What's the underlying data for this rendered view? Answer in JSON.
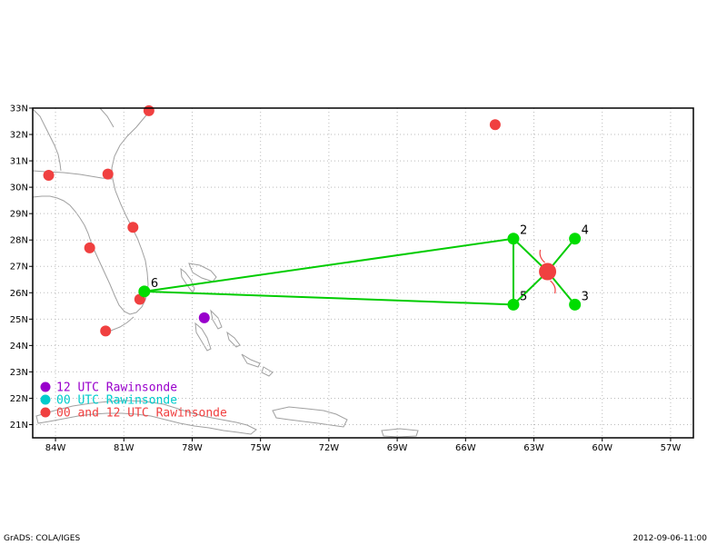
{
  "map": {
    "lon_range": [
      -85,
      -56
    ],
    "lat_range": [
      20.5,
      33
    ],
    "x_ticks": [
      {
        "lon": -84,
        "label": "84W"
      },
      {
        "lon": -81,
        "label": "81W"
      },
      {
        "lon": -78,
        "label": "78W"
      },
      {
        "lon": -75,
        "label": "75W"
      },
      {
        "lon": -72,
        "label": "72W"
      },
      {
        "lon": -69,
        "label": "69W"
      },
      {
        "lon": -66,
        "label": "66W"
      },
      {
        "lon": -63,
        "label": "63W"
      },
      {
        "lon": -60,
        "label": "60W"
      },
      {
        "lon": -57,
        "label": "57W"
      }
    ],
    "y_ticks": [
      {
        "lat": 21,
        "label": "21N"
      },
      {
        "lat": 22,
        "label": "22N"
      },
      {
        "lat": 23,
        "label": "23N"
      },
      {
        "lat": 24,
        "label": "24N"
      },
      {
        "lat": 25,
        "label": "25N"
      },
      {
        "lat": 26,
        "label": "26N"
      },
      {
        "lat": 27,
        "label": "27N"
      },
      {
        "lat": 28,
        "label": "28N"
      },
      {
        "lat": 29,
        "label": "29N"
      },
      {
        "lat": 30,
        "label": "30N"
      },
      {
        "lat": 31,
        "label": "31N"
      },
      {
        "lat": 32,
        "label": "32N"
      },
      {
        "lat": 33,
        "label": "33N"
      }
    ],
    "grid": true
  },
  "colors": {
    "track": "#00cc00",
    "waypoint": "#00dd00",
    "storm": "#f04040",
    "c12": "#9900cc",
    "c00": "#00cccc",
    "cboth": "#f04040",
    "coast": "#a0a0a0"
  },
  "track": [
    {
      "id": "6",
      "lon": -80.1,
      "lat": 26.05
    },
    {
      "id": "2",
      "lon": -63.9,
      "lat": 28.05
    },
    {
      "id": "4",
      "lon": -61.2,
      "lat": 28.05
    },
    {
      "id": "3",
      "lon": -61.2,
      "lat": 25.55
    },
    {
      "id": "5",
      "lon": -63.9,
      "lat": 25.55
    }
  ],
  "track_order": [
    0,
    1,
    4,
    0
  ],
  "storm_center": {
    "lon": -62.4,
    "lat": 26.8
  },
  "storm_spokes": [
    1,
    2,
    3,
    4
  ],
  "stations": [
    {
      "lon": -79.9,
      "lat": 32.9,
      "type": "both"
    },
    {
      "lon": -84.3,
      "lat": 30.45,
      "type": "both"
    },
    {
      "lon": -81.7,
      "lat": 30.5,
      "type": "both"
    },
    {
      "lon": -80.6,
      "lat": 28.48,
      "type": "both"
    },
    {
      "lon": -82.5,
      "lat": 27.7,
      "type": "both"
    },
    {
      "lon": -80.3,
      "lat": 25.75,
      "type": "both"
    },
    {
      "lon": -81.8,
      "lat": 24.55,
      "type": "both"
    },
    {
      "lon": -64.7,
      "lat": 32.37,
      "type": "both"
    },
    {
      "lon": -77.47,
      "lat": 25.05,
      "type": "12"
    }
  ],
  "legend": [
    {
      "label": "12 UTC Rawinsonde",
      "type": "12"
    },
    {
      "label": "00 UTC Rawinsonde",
      "type": "00"
    },
    {
      "label": "00 and 12 UTC Rawinsonde",
      "type": "both"
    }
  ],
  "footer": {
    "left": "GrADS: COLA/IGES",
    "right": "2012-09-06-11:00"
  }
}
